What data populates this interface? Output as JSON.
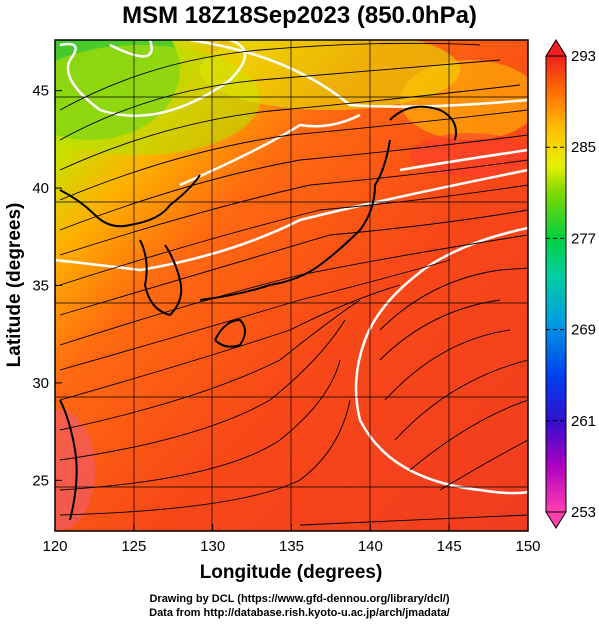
{
  "title": "MSM 18Z18Sep2023 (850.0hPa)",
  "xlabel": "Longitude (degrees)",
  "ylabel": "Latitude  (degrees)",
  "x_ticks": [
    120,
    125,
    130,
    135,
    140,
    145,
    150
  ],
  "y_ticks": [
    25,
    30,
    35,
    40,
    45
  ],
  "x_range": [
    120,
    150
  ],
  "y_range": [
    22.4,
    47.6
  ],
  "colorbar": {
    "ticks": [
      293,
      285,
      277,
      269,
      261,
      253
    ],
    "range": [
      253,
      293
    ],
    "colors": [
      "#ff3fb0",
      "#c000c0",
      "#6010d0",
      "#0000e0",
      "#0070ff",
      "#00b0e0",
      "#00d0a0",
      "#00d040",
      "#40d000",
      "#a0e000",
      "#e8f000",
      "#ffd000",
      "#ff9000",
      "#ff5000",
      "#f02020"
    ]
  },
  "credits": [
    "Drawing by DCL (https://www.gfd-dennou.org/library/dcl/)",
    "Data from http://database.rish.kyoto-u.ac.jp/arch/jmadata/"
  ]
}
